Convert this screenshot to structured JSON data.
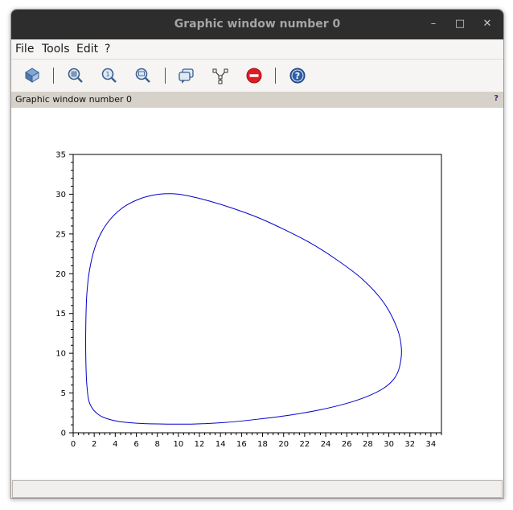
{
  "window": {
    "title": "Graphic window number 0",
    "controls": {
      "minimize": "–",
      "maximize": "□",
      "close": "✕"
    }
  },
  "menu": {
    "items": [
      {
        "label": "File"
      },
      {
        "label": "Tools"
      },
      {
        "label": "Edit"
      },
      {
        "label": "?"
      }
    ]
  },
  "toolbar": {
    "buttons": [
      {
        "icon": "rotate-icon"
      },
      {
        "icon": "zoom-grid-icon"
      },
      {
        "icon": "zoom-original-icon"
      },
      {
        "icon": "zoom-selection-icon"
      },
      {
        "icon": "datatip-icon"
      },
      {
        "icon": "edit-path-icon"
      },
      {
        "icon": "stop-icon",
        "color": "#e01b24"
      },
      {
        "icon": "help-icon",
        "color": "#2f5fa8"
      }
    ]
  },
  "infobar": {
    "text": "Graphic window number 0",
    "help": "?"
  },
  "chart_data": {
    "type": "line",
    "title": "",
    "xlabel": "",
    "ylabel": "",
    "xlim": [
      0,
      35
    ],
    "ylim": [
      0,
      35
    ],
    "xticks": [
      "0",
      "2",
      "4",
      "6",
      "8",
      "10",
      "12",
      "14",
      "16",
      "18",
      "20",
      "22",
      "24",
      "26",
      "28",
      "30",
      "32",
      "34"
    ],
    "yticks": [
      "0",
      "5",
      "10",
      "15",
      "20",
      "25",
      "30",
      "35"
    ],
    "grid": false,
    "series": [
      {
        "color": "#0000cc",
        "x": [
          10,
          12.5,
          15,
          17.5,
          20,
          22.5,
          25,
          27.5,
          29.5,
          30.8,
          31.2,
          31.0,
          30.5,
          29.5,
          28.0,
          26.0,
          23.5,
          20.5,
          17.5,
          14.5,
          11.5,
          8.5,
          6.0,
          4.0,
          2.5,
          1.6,
          1.3,
          1.2,
          1.2,
          1.3,
          1.6,
          2.2,
          3.2,
          4.6,
          6.3,
          8.2,
          10.0
        ],
        "y": [
          30.0,
          29.3,
          28.3,
          27.1,
          25.6,
          23.9,
          21.8,
          19.3,
          16.4,
          13.1,
          10.5,
          8.2,
          6.8,
          5.6,
          4.6,
          3.7,
          2.9,
          2.2,
          1.7,
          1.3,
          1.1,
          1.1,
          1.2,
          1.5,
          2.2,
          3.6,
          6.0,
          9.5,
          13.5,
          17.5,
          20.8,
          23.8,
          26.3,
          28.2,
          29.4,
          30.0,
          30.0
        ]
      }
    ]
  }
}
